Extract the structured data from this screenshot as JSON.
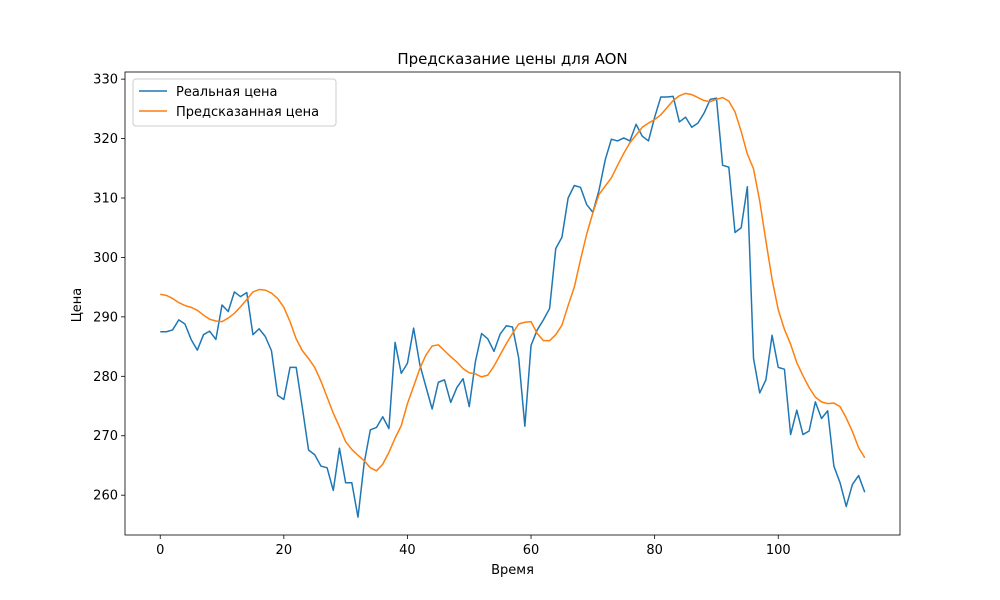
{
  "chart_data": {
    "type": "line",
    "title": "Предсказание цены для AON",
    "xlabel": "Время",
    "ylabel": "Цена",
    "xlim": [
      -5.7,
      119.7
    ],
    "ylim": [
      253.3,
      331.2
    ],
    "xticks": [
      0,
      20,
      40,
      60,
      80,
      100
    ],
    "yticks": [
      260,
      270,
      280,
      290,
      300,
      310,
      320,
      330
    ],
    "grid": false,
    "legend_position": "top-left",
    "series": [
      {
        "name": "Реальная цена",
        "color": "#1f77b4",
        "values": [
          287.5,
          287.5,
          287.8,
          289.5,
          288.8,
          286.2,
          284.4,
          287.0,
          287.6,
          286.2,
          292.0,
          290.9,
          294.2,
          293.4,
          294.1,
          287.0,
          288.0,
          286.7,
          284.3,
          276.8,
          276.1,
          281.5,
          281.5,
          274.7,
          267.6,
          266.8,
          264.9,
          264.6,
          260.8,
          267.9,
          262.1,
          262.1,
          256.3,
          265.4,
          271.0,
          271.4,
          273.2,
          271.2,
          285.7,
          280.5,
          282.2,
          288.1,
          282.0,
          278.2,
          274.5,
          279.0,
          279.4,
          275.6,
          278.1,
          279.6,
          274.9,
          282.5,
          287.2,
          286.3,
          284.2,
          287.1,
          288.5,
          288.3,
          283.1,
          271.6,
          285.2,
          287.8,
          289.5,
          291.4,
          301.5,
          303.4,
          310.0,
          312.1,
          311.8,
          308.9,
          307.6,
          311.3,
          316.4,
          319.9,
          319.6,
          320.1,
          319.6,
          322.4,
          320.4,
          319.6,
          323.6,
          327.0,
          327.0,
          327.1,
          322.8,
          323.6,
          321.9,
          322.6,
          324.3,
          326.6,
          326.8,
          315.5,
          315.2,
          304.2,
          305.0,
          311.9,
          283.0,
          277.2,
          279.4,
          286.9,
          281.5,
          281.2,
          270.2,
          274.3,
          270.2,
          270.8,
          275.7,
          272.9,
          274.2,
          264.9,
          262.1,
          258.1,
          261.8,
          263.3,
          260.5
        ]
      },
      {
        "name": "Предсказанная цена",
        "color": "#ff7f0e",
        "values": [
          293.8,
          293.6,
          293.1,
          292.4,
          291.9,
          291.6,
          291.1,
          290.3,
          289.6,
          289.3,
          289.2,
          289.8,
          290.6,
          291.7,
          292.9,
          294.2,
          294.6,
          294.5,
          294.0,
          293.1,
          291.6,
          289.2,
          286.3,
          284.3,
          283.0,
          281.5,
          279.2,
          276.5,
          273.8,
          271.5,
          269.0,
          267.7,
          266.7,
          265.8,
          264.6,
          264.1,
          265.2,
          267.2,
          269.6,
          271.7,
          275.4,
          278.3,
          281.3,
          283.6,
          285.1,
          285.3,
          284.3,
          283.3,
          282.4,
          281.3,
          280.6,
          280.4,
          279.9,
          280.2,
          281.7,
          283.6,
          285.5,
          287.2,
          288.8,
          289.1,
          289.2,
          287.2,
          286.0,
          286.0,
          287.0,
          288.6,
          291.9,
          295.0,
          299.6,
          303.9,
          307.5,
          310.6,
          312.0,
          313.4,
          315.5,
          317.5,
          319.3,
          320.6,
          321.9,
          322.6,
          323.2,
          324.0,
          325.2,
          326.4,
          327.2,
          327.6,
          327.4,
          326.9,
          326.4,
          326.2,
          326.6,
          326.9,
          326.3,
          324.5,
          321.2,
          317.4,
          314.9,
          309.5,
          302.8,
          296.3,
          291.2,
          287.9,
          285.4,
          282.3,
          280.1,
          278.1,
          276.5,
          275.7,
          275.4,
          275.5,
          274.9,
          273.0,
          270.7,
          268.0,
          266.3
        ]
      }
    ]
  }
}
